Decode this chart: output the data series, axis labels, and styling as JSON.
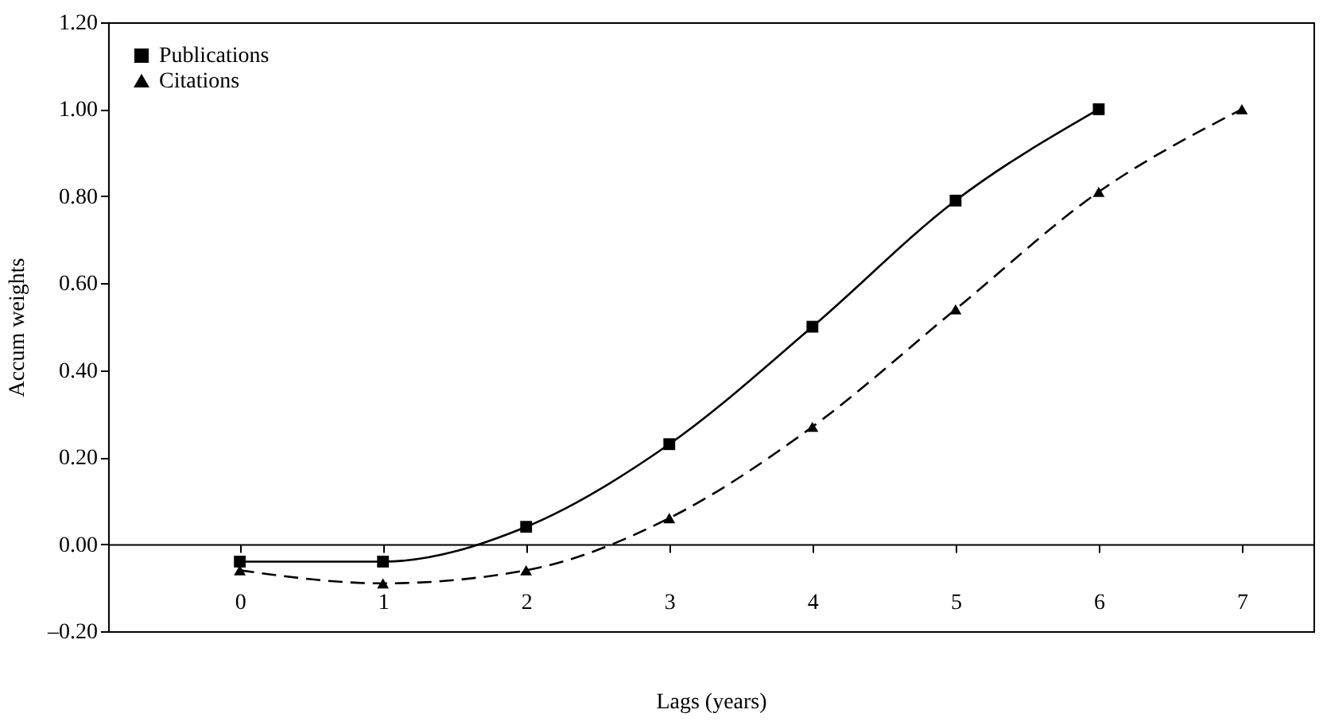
{
  "chart_data": {
    "type": "line",
    "xlabel": "Lags (years)",
    "ylabel": "Accum weights",
    "series": [
      {
        "name": "Publications",
        "color": "#000000",
        "marker": "square",
        "line_style": "solid",
        "x": [
          0,
          1,
          2,
          3,
          4,
          5,
          6
        ],
        "values": [
          -0.04,
          -0.04,
          0.04,
          0.23,
          0.5,
          0.79,
          1.0
        ]
      },
      {
        "name": "Citations",
        "color": "#000000",
        "marker": "triangle",
        "line_style": "dashed",
        "x": [
          0,
          1,
          2,
          3,
          4,
          5,
          6,
          7
        ],
        "values": [
          -0.06,
          -0.09,
          -0.06,
          0.06,
          0.27,
          0.54,
          0.81,
          1.0
        ]
      }
    ],
    "xlim": [
      -0.92,
      7.5
    ],
    "xticks": [
      0,
      1,
      2,
      3,
      4,
      5,
      6,
      7
    ],
    "ylim": [
      -0.2,
      1.2
    ],
    "yticks": [
      {
        "value": -0.2,
        "label": "–0.20"
      },
      {
        "value": 0,
        "label": "0.00"
      },
      {
        "value": 0.2,
        "label": "0.20"
      },
      {
        "value": 0.4,
        "label": "0.40"
      },
      {
        "value": 0.6,
        "label": "0.60"
      },
      {
        "value": 0.8,
        "label": "0.80"
      },
      {
        "value": 1.0,
        "label": "1.00"
      },
      {
        "value": 1.2,
        "label": "1.20"
      }
    ],
    "legend": "top left"
  }
}
